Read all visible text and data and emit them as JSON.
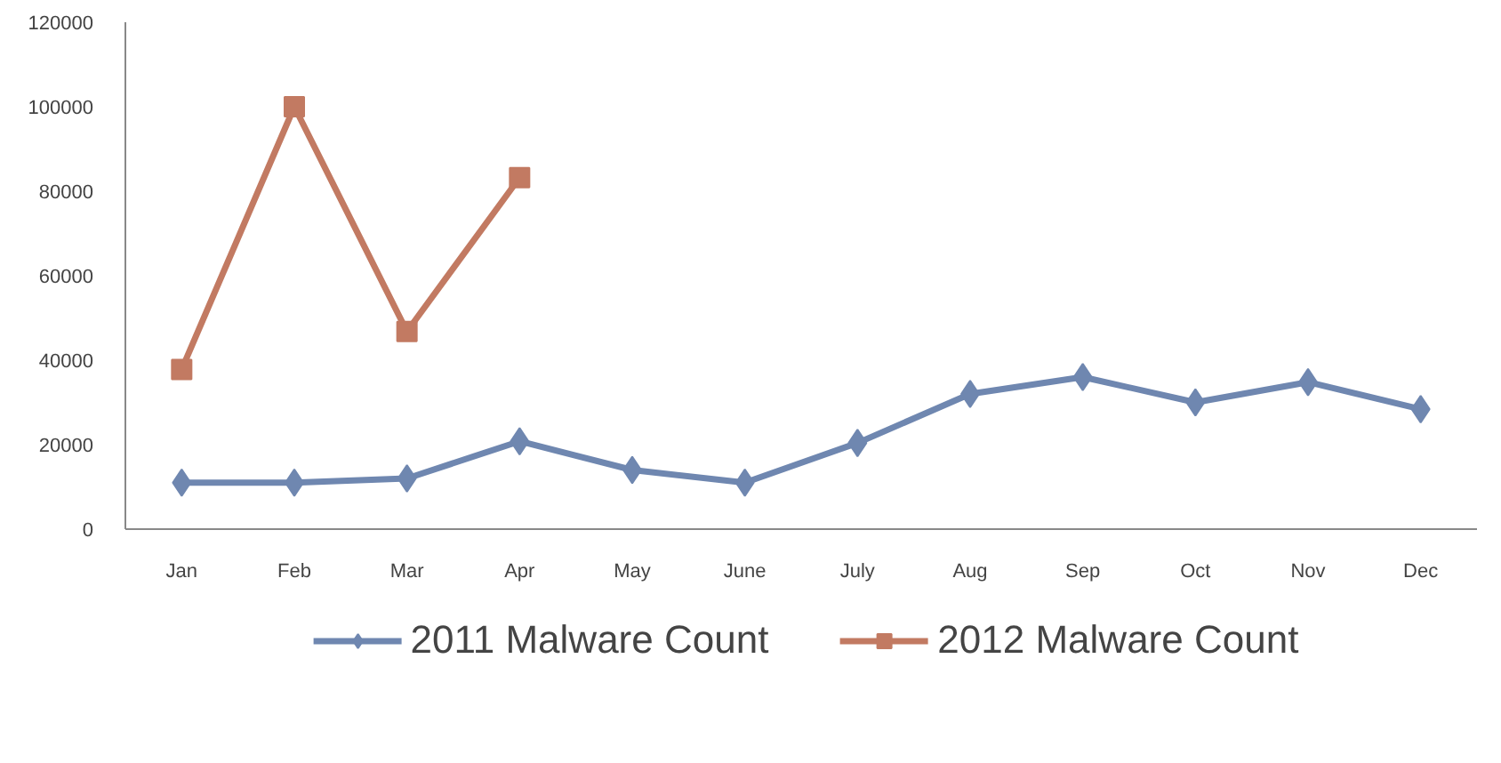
{
  "chart_data": {
    "type": "line",
    "categories": [
      "Jan",
      "Feb",
      "Mar",
      "Apr",
      "May",
      "June",
      "July",
      "Aug",
      "Sep",
      "Oct",
      "Nov",
      "Dec"
    ],
    "series": [
      {
        "name": "2011 Malware Count",
        "color": "#6f87b0",
        "marker": "diamond",
        "values": [
          11000,
          11000,
          12000,
          20800,
          14000,
          11000,
          20400,
          32000,
          36000,
          30000,
          34800,
          28400
        ]
      },
      {
        "name": "2012 Malware Count",
        "color": "#c27a62",
        "marker": "square",
        "values": [
          37800,
          100000,
          46800,
          83200,
          null,
          null,
          null,
          null,
          null,
          null,
          null,
          null
        ]
      }
    ],
    "ylim": [
      0,
      120000
    ],
    "yticks": [
      0,
      20000,
      40000,
      60000,
      80000,
      100000,
      120000
    ],
    "grid": false,
    "legend": "bottom"
  }
}
